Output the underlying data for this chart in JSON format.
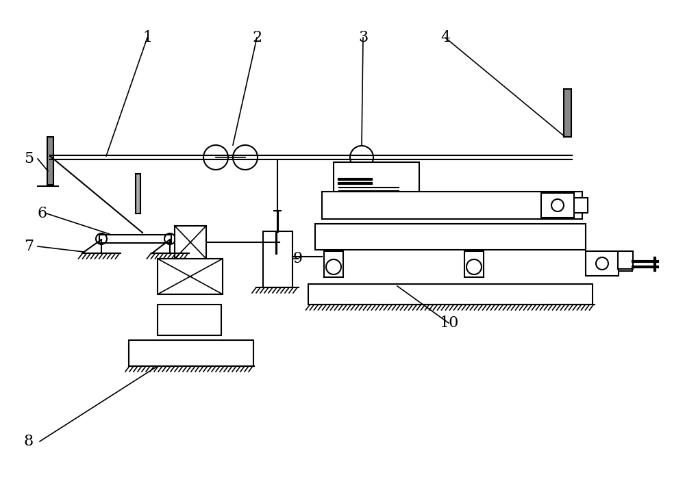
{
  "bg_color": "#ffffff",
  "line_color": "#000000",
  "line_width": 1.5,
  "figsize": [
    10.0,
    6.97
  ],
  "dpi": 100,
  "labels": [
    [
      "1",
      215,
      55
    ],
    [
      "2",
      375,
      55
    ],
    [
      "3",
      530,
      55
    ],
    [
      "4",
      650,
      55
    ],
    [
      "5",
      42,
      232
    ],
    [
      "6",
      62,
      312
    ],
    [
      "7",
      42,
      360
    ],
    [
      "8",
      42,
      645
    ],
    [
      "9",
      435,
      378
    ],
    [
      "10",
      655,
      472
    ]
  ]
}
